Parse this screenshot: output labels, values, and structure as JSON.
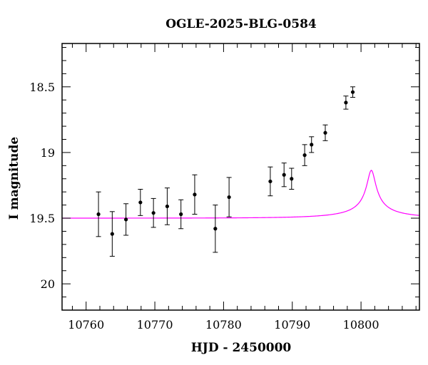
{
  "chart_data": {
    "type": "scatter",
    "title": "OGLE-2025-BLG-0584",
    "xlabel": "HJD - 2450000",
    "ylabel": "I magnitude",
    "xlim": [
      10756.5,
      10808.5
    ],
    "ylim": [
      20.2,
      18.17
    ],
    "y_inverted": true,
    "x_major_ticks": [
      10760,
      10770,
      10780,
      10790,
      10800
    ],
    "x_tick_labels": [
      "10760",
      "10770",
      "10780",
      "10790",
      "10800"
    ],
    "y_major_ticks": [
      18.5,
      19,
      19.5,
      20
    ],
    "y_tick_labels": [
      "18.5",
      "19",
      "19.5",
      "20"
    ],
    "grid": false,
    "series": [
      {
        "kind": "points_with_errorbars",
        "color": "#000000",
        "points": [
          {
            "x": 10761.8,
            "y": 19.47,
            "err": 0.17
          },
          {
            "x": 10763.8,
            "y": 19.62,
            "err": 0.17
          },
          {
            "x": 10765.8,
            "y": 19.51,
            "err": 0.12
          },
          {
            "x": 10767.9,
            "y": 19.38,
            "err": 0.1
          },
          {
            "x": 10769.8,
            "y": 19.46,
            "err": 0.11
          },
          {
            "x": 10771.8,
            "y": 19.41,
            "err": 0.14
          },
          {
            "x": 10773.8,
            "y": 19.47,
            "err": 0.11
          },
          {
            "x": 10775.8,
            "y": 19.32,
            "err": 0.15
          },
          {
            "x": 10778.8,
            "y": 19.58,
            "err": 0.18
          },
          {
            "x": 10780.8,
            "y": 19.34,
            "err": 0.15
          },
          {
            "x": 10786.8,
            "y": 19.22,
            "err": 0.11
          },
          {
            "x": 10788.8,
            "y": 19.17,
            "err": 0.09
          },
          {
            "x": 10789.9,
            "y": 19.2,
            "err": 0.08
          },
          {
            "x": 10791.8,
            "y": 19.02,
            "err": 0.08
          },
          {
            "x": 10792.8,
            "y": 18.94,
            "err": 0.06
          },
          {
            "x": 10794.8,
            "y": 18.85,
            "err": 0.06
          },
          {
            "x": 10797.8,
            "y": 18.62,
            "err": 0.05
          },
          {
            "x": 10798.8,
            "y": 18.54,
            "err": 0.04
          }
        ]
      },
      {
        "kind": "model_curve",
        "color": "#ff00ff",
        "model": {
          "t0": 10801.5,
          "tE": 12,
          "u0": 0.05,
          "fs": 0.021,
          "base_mag": 19.5
        }
      }
    ]
  }
}
